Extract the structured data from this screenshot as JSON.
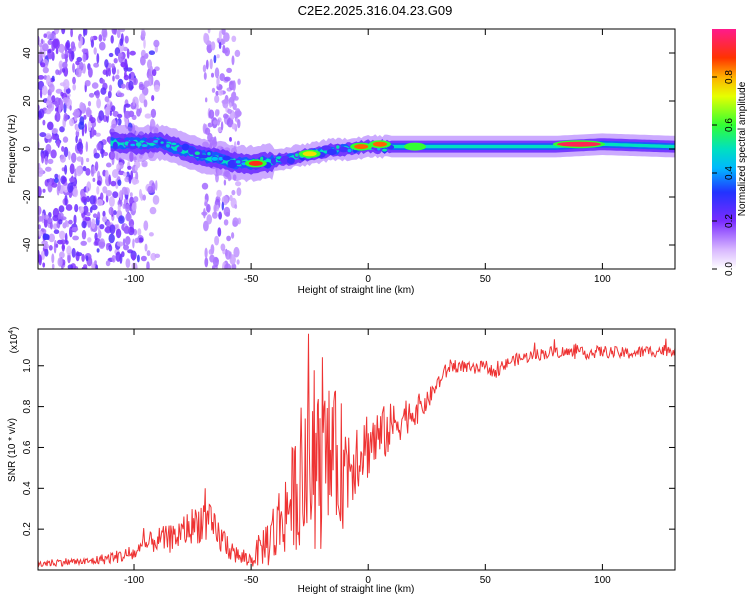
{
  "title": "C2E2.2025.316.04.23.G09",
  "colors": {
    "snr_line": "#ee3333",
    "axis": "#000000",
    "background": "#ffffff"
  },
  "chart_data": [
    {
      "type": "heatmap",
      "name": "spectrogram",
      "xlabel": "Height of straight line (km)",
      "ylabel": "Frequency (Hz)",
      "xlim": [
        -141,
        131
      ],
      "ylim": [
        -50,
        50
      ],
      "xticks": [
        -100,
        -50,
        0,
        50,
        100
      ],
      "xtick_labels": [
        "-100",
        "-50",
        "0",
        "50",
        "100"
      ],
      "yticks": [
        -40,
        -20,
        0,
        20,
        40
      ],
      "ytick_labels": [
        "-40",
        "-20",
        "0",
        "20",
        "40"
      ],
      "ridge": {
        "x": [
          -110,
          -100,
          -90,
          -80,
          -70,
          -60,
          -55,
          -50,
          -40,
          -30,
          -20,
          -10,
          0,
          10,
          20,
          50,
          80,
          100,
          130
        ],
        "freq": [
          3,
          2,
          3,
          0,
          -3,
          -5,
          -6,
          -6,
          -5,
          -3,
          -1,
          0,
          1,
          1,
          1,
          1,
          1,
          2,
          1
        ]
      },
      "hotspots": [
        {
          "x": 90,
          "freq": 2,
          "amp": 0.95
        },
        {
          "x": -48,
          "freq": -6,
          "amp": 0.9
        },
        {
          "x": -3,
          "freq": 1,
          "amp": 0.85
        },
        {
          "x": 5,
          "freq": 2,
          "amp": 0.85
        },
        {
          "x": -25,
          "freq": -2,
          "amp": 0.75
        },
        {
          "x": 20,
          "freq": 1,
          "amp": 0.6
        }
      ],
      "colorbar": {
        "label": "Normalized spectral amplitude",
        "ticks": [
          0.0,
          0.2,
          0.4,
          0.6,
          0.8
        ],
        "tick_labels": [
          "0.0",
          "0.2",
          "0.4",
          "0.6",
          "0.8"
        ],
        "range": [
          0,
          1
        ]
      }
    },
    {
      "type": "line",
      "name": "snr",
      "xlabel": "Height of straight line (km)",
      "ylabel": "SNR (10 * v/v)",
      "exponent_label": "(x10",
      "exponent_power": "4",
      "exponent_close": ")",
      "xlim": [
        -141,
        131
      ],
      "ylim": [
        0,
        1.18
      ],
      "xticks": [
        -100,
        -50,
        0,
        50,
        100
      ],
      "xtick_labels": [
        "-100",
        "-50",
        "0",
        "50",
        "100"
      ],
      "yticks": [
        0.2,
        0.4,
        0.6,
        0.8,
        1.0
      ],
      "ytick_labels": [
        "0.2",
        "0.4",
        "0.6",
        "0.8",
        "1.0"
      ],
      "series": [
        {
          "name": "SNR",
          "x": [
            -141,
            -130,
            -120,
            -110,
            -100,
            -95,
            -90,
            -85,
            -80,
            -75,
            -70,
            -65,
            -60,
            -55,
            -50,
            -45,
            -40,
            -35,
            -30,
            -25,
            -20,
            -15,
            -10,
            -5,
            0,
            5,
            10,
            15,
            20,
            25,
            30,
            35,
            40,
            45,
            50,
            55,
            60,
            70,
            80,
            90,
            100,
            110,
            120,
            131
          ],
          "y": [
            0.03,
            0.04,
            0.04,
            0.06,
            0.08,
            0.12,
            0.15,
            0.15,
            0.18,
            0.22,
            0.25,
            0.18,
            0.12,
            0.06,
            0.05,
            0.12,
            0.18,
            0.3,
            0.4,
            0.45,
            0.5,
            0.55,
            0.5,
            0.58,
            0.62,
            0.65,
            0.7,
            0.75,
            0.78,
            0.82,
            0.92,
            1.0,
            1.0,
            0.98,
            1.0,
            0.96,
            1.02,
            1.05,
            1.07,
            1.06,
            1.07,
            1.06,
            1.07,
            1.08
          ],
          "noise_amp": [
            0.02,
            0.02,
            0.02,
            0.03,
            0.04,
            0.05,
            0.06,
            0.07,
            0.08,
            0.09,
            0.12,
            0.09,
            0.07,
            0.04,
            0.04,
            0.1,
            0.18,
            0.22,
            0.3,
            0.35,
            0.4,
            0.35,
            0.3,
            0.2,
            0.18,
            0.15,
            0.12,
            0.1,
            0.08,
            0.05,
            0.04,
            0.04,
            0.03,
            0.03,
            0.03,
            0.03,
            0.03,
            0.03,
            0.03,
            0.03,
            0.03,
            0.03,
            0.03,
            0.03
          ]
        }
      ]
    }
  ]
}
